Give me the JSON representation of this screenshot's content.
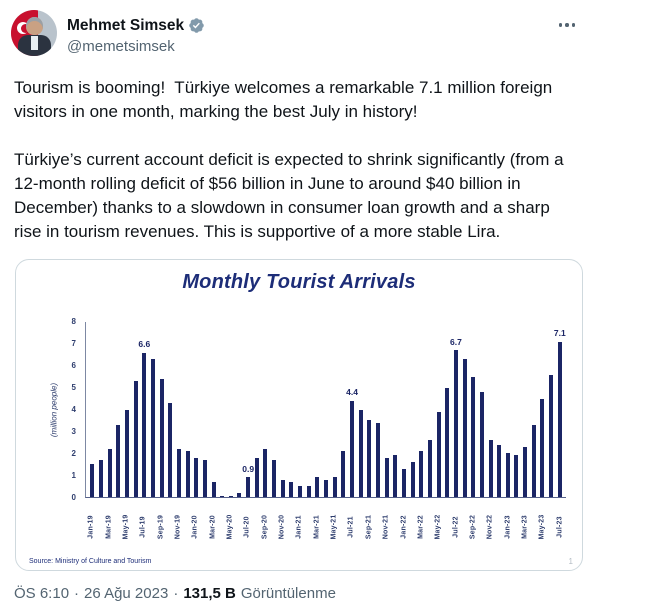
{
  "header": {
    "display_name": "Mehmet Simsek",
    "handle": "@memetsimsek"
  },
  "tweet": {
    "paragraph1": "Tourism is booming!  Türkiye welcomes a remarkable 7.1 million foreign visitors in one month, marking the best July in history!",
    "paragraph2": "Türkiye’s current account deficit is expected to shrink significantly (from a 12-month rolling deficit of $56 billion in June to around $40 billion in December) thanks to a slowdown in consumer loan growth and a sharp rise in tourism revenues. This is supportive of a more stable Lira."
  },
  "chart_data": {
    "type": "bar",
    "title": "Monthly Tourist Arrivals",
    "ylabel": "(million people)",
    "xlabel": "",
    "ylim": [
      0,
      8
    ],
    "yticks": [
      0,
      1,
      2,
      3,
      4,
      5,
      6,
      7,
      8
    ],
    "grid": false,
    "legend": false,
    "bar_color": "#1b2565",
    "x": [
      "Jan-19",
      "Feb-19",
      "Mar-19",
      "Apr-19",
      "May-19",
      "Jun-19",
      "Jul-19",
      "Aug-19",
      "Sep-19",
      "Oct-19",
      "Nov-19",
      "Dec-19",
      "Jan-20",
      "Feb-20",
      "Mar-20",
      "Apr-20",
      "May-20",
      "Jun-20",
      "Jul-20",
      "Aug-20",
      "Sep-20",
      "Oct-20",
      "Nov-20",
      "Dec-20",
      "Jan-21",
      "Feb-21",
      "Mar-21",
      "Apr-21",
      "May-21",
      "Jun-21",
      "Jul-21",
      "Aug-21",
      "Sep-21",
      "Oct-21",
      "Nov-21",
      "Dec-21",
      "Jan-22",
      "Feb-22",
      "Mar-22",
      "Apr-22",
      "May-22",
      "Jun-22",
      "Jul-22",
      "Aug-22",
      "Sep-22",
      "Oct-22",
      "Nov-22",
      "Dec-22",
      "Jan-23",
      "Feb-23",
      "Mar-23",
      "Apr-23",
      "May-23",
      "Jun-23",
      "Jul-23"
    ],
    "values": [
      1.5,
      1.7,
      2.2,
      3.3,
      4.0,
      5.3,
      6.6,
      6.3,
      5.4,
      4.3,
      2.2,
      2.1,
      1.8,
      1.7,
      0.7,
      0.03,
      0.03,
      0.2,
      0.9,
      1.8,
      2.2,
      1.7,
      0.8,
      0.7,
      0.5,
      0.5,
      0.9,
      0.8,
      0.9,
      2.1,
      4.4,
      4.0,
      3.5,
      3.4,
      1.8,
      1.9,
      1.3,
      1.6,
      2.1,
      2.6,
      3.9,
      5.0,
      6.7,
      6.3,
      5.5,
      4.8,
      2.6,
      2.4,
      2.0,
      1.9,
      2.3,
      3.3,
      4.5,
      5.6,
      7.1
    ],
    "callouts": {
      "Jul-19": "6.6",
      "Jul-20": "0.9",
      "Jul-21": "4.4",
      "Jul-22": "6.7",
      "Jul-23": "7.1"
    },
    "x_tick_every": 2,
    "source": "Source: Ministry of Culture and Tourism",
    "page_number": "1"
  },
  "footer": {
    "time": "ÖS 6:10",
    "separator": "·",
    "date": "26 Ağu 2023",
    "views_count": "131,5 B",
    "views_label": "Görüntülenme"
  },
  "colors": {
    "text_primary": "#0f1419",
    "text_secondary": "#536471",
    "verified_badge": "#829aab",
    "chart_navy": "#1d2d78",
    "bar_navy": "#1b2565",
    "card_border": "#cfd9de"
  }
}
